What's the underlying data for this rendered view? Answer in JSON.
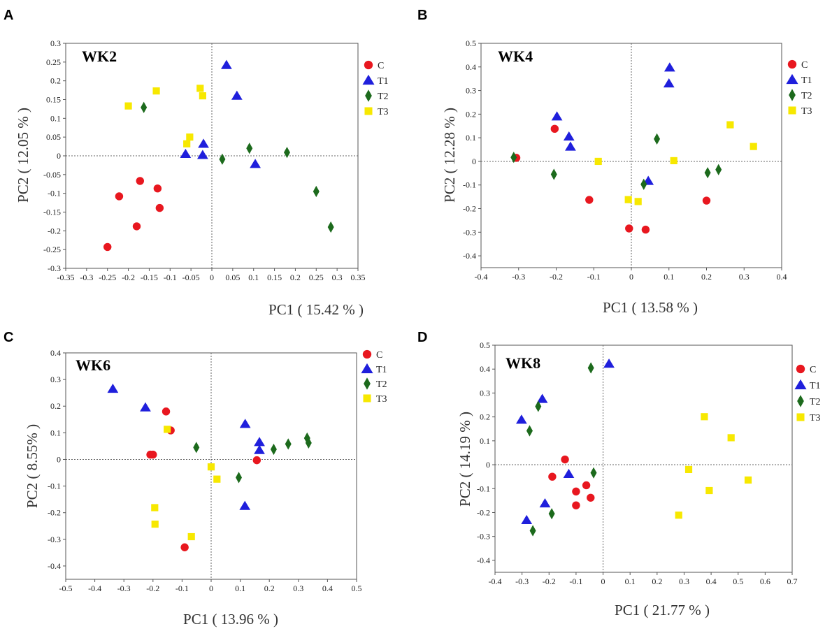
{
  "chart_data": [
    {
      "panel": "A",
      "type": "scatter",
      "title": "WK2",
      "xlabel": "PC1 ( 15.42 % )",
      "ylabel": "PC2 ( 12.05 % )",
      "xlim": [
        -0.35,
        0.35
      ],
      "ylim": [
        -0.3,
        0.3
      ],
      "xticks": [
        "-0.35",
        "-0.3",
        "-0.25",
        "-0.2",
        "-0.15",
        "-0.1",
        "-0.05",
        "0",
        "0.05",
        "0.1",
        "0.15",
        "0.2",
        "0.25",
        "0.3",
        "0.35"
      ],
      "xtick_values": [
        -0.35,
        -0.3,
        -0.25,
        -0.2,
        -0.15,
        -0.1,
        -0.05,
        0,
        0.05,
        0.1,
        0.15,
        0.2,
        0.25,
        0.3,
        0.35
      ],
      "yticks": [
        "-0.3",
        "-0.25",
        "-0.2",
        "-0.15",
        "-0.1",
        "-0.05",
        "0",
        "0.05",
        "0.1",
        "0.15",
        "0.2",
        "0.25",
        "0.3"
      ],
      "ytick_values": [
        -0.3,
        -0.25,
        -0.2,
        -0.15,
        -0.1,
        -0.05,
        0,
        0.05,
        0.1,
        0.15,
        0.2,
        0.25,
        0.3
      ],
      "series": [
        {
          "name": "C",
          "points": [
            [
              -0.25,
              -0.243
            ],
            [
              -0.222,
              -0.108
            ],
            [
              -0.18,
              -0.188
            ],
            [
              -0.172,
              -0.067
            ],
            [
              -0.13,
              -0.087
            ],
            [
              -0.125,
              -0.139
            ]
          ]
        },
        {
          "name": "T1",
          "points": [
            [
              0.035,
              0.242
            ],
            [
              0.06,
              0.16
            ],
            [
              -0.02,
              0.032
            ],
            [
              -0.063,
              0.005
            ],
            [
              -0.022,
              0.002
            ],
            [
              0.104,
              -0.022
            ]
          ]
        },
        {
          "name": "T2",
          "points": [
            [
              -0.163,
              0.129
            ],
            [
              0.09,
              0.02
            ],
            [
              0.18,
              0.009
            ],
            [
              0.025,
              -0.009
            ],
            [
              0.25,
              -0.095
            ],
            [
              0.285,
              -0.19
            ]
          ]
        },
        {
          "name": "T3",
          "points": [
            [
              -0.2,
              0.133
            ],
            [
              -0.133,
              0.173
            ],
            [
              -0.028,
              0.18
            ],
            [
              -0.022,
              0.16
            ],
            [
              -0.053,
              0.05
            ],
            [
              -0.06,
              0.032
            ]
          ]
        }
      ]
    },
    {
      "panel": "B",
      "type": "scatter",
      "title": "WK4",
      "xlabel": "PC1 ( 13.58 % )",
      "ylabel": "PC2 ( 12.28 % )",
      "xlim": [
        -0.4,
        0.4
      ],
      "ylim": [
        -0.45,
        0.5
      ],
      "xticks": [
        "-0.4",
        "-0.3",
        "-0.2",
        "-0.1",
        "0",
        "0.1",
        "0.2",
        "0.3",
        "0.4"
      ],
      "xtick_values": [
        -0.4,
        -0.3,
        -0.2,
        -0.1,
        0,
        0.1,
        0.2,
        0.3,
        0.4
      ],
      "yticks": [
        "-0.4",
        "-0.3",
        "-0.2",
        "-0.1",
        "0",
        "0.1",
        "0.2",
        "0.3",
        "0.4",
        "0.5"
      ],
      "ytick_values": [
        -0.4,
        -0.3,
        -0.2,
        -0.1,
        0,
        0.1,
        0.2,
        0.3,
        0.4,
        0.5
      ],
      "series": [
        {
          "name": "C",
          "points": [
            [
              -0.306,
              0.015
            ],
            [
              -0.204,
              0.138
            ],
            [
              -0.112,
              -0.163
            ],
            [
              -0.006,
              -0.284
            ],
            [
              0.038,
              -0.289
            ],
            [
              0.2,
              -0.166
            ]
          ]
        },
        {
          "name": "T1",
          "points": [
            [
              0.102,
              0.397
            ],
            [
              0.1,
              0.33
            ],
            [
              -0.198,
              0.19
            ],
            [
              -0.166,
              0.105
            ],
            [
              -0.162,
              0.062
            ],
            [
              0.045,
              -0.083
            ]
          ]
        },
        {
          "name": "T2",
          "points": [
            [
              -0.313,
              0.017
            ],
            [
              -0.206,
              -0.055
            ],
            [
              0.068,
              0.095
            ],
            [
              0.033,
              -0.097
            ],
            [
              0.203,
              -0.048
            ],
            [
              0.232,
              -0.035
            ]
          ]
        },
        {
          "name": "T3",
          "points": [
            [
              0.263,
              0.155
            ],
            [
              0.325,
              0.063
            ],
            [
              -0.088,
              0.0
            ],
            [
              0.113,
              0.003
            ],
            [
              -0.008,
              -0.162
            ],
            [
              0.018,
              -0.17
            ]
          ]
        }
      ]
    },
    {
      "panel": "C",
      "type": "scatter",
      "title": "WK6",
      "xlabel": "PC1 ( 13.96 % )",
      "ylabel": "PC2 ( 8.55% )",
      "xlim": [
        -0.5,
        0.5
      ],
      "ylim": [
        -0.45,
        0.4
      ],
      "xticks": [
        "-0.5",
        "-0.4",
        "-0.3",
        "-0.2",
        "-0.1",
        "0",
        "0.1",
        "0.2",
        "0.3",
        "0.4",
        "0.5"
      ],
      "xtick_values": [
        -0.5,
        -0.4,
        -0.3,
        -0.2,
        -0.1,
        0,
        0.1,
        0.2,
        0.3,
        0.4,
        0.5
      ],
      "yticks": [
        "-0.4",
        "-0.3",
        "-0.2",
        "-0.1",
        "0",
        "0.1",
        "0.2",
        "0.3",
        "0.4"
      ],
      "ytick_values": [
        -0.4,
        -0.3,
        -0.2,
        -0.1,
        0,
        0.1,
        0.2,
        0.3,
        0.4
      ],
      "series": [
        {
          "name": "C",
          "points": [
            [
              -0.155,
              0.18
            ],
            [
              -0.139,
              0.109
            ],
            [
              -0.209,
              0.018
            ],
            [
              -0.2,
              0.018
            ],
            [
              0.157,
              -0.003
            ],
            [
              -0.091,
              -0.33
            ]
          ]
        },
        {
          "name": "T1",
          "points": [
            [
              -0.338,
              0.265
            ],
            [
              -0.226,
              0.195
            ],
            [
              0.117,
              0.133
            ],
            [
              0.166,
              0.065
            ],
            [
              0.166,
              0.035
            ],
            [
              0.116,
              -0.175
            ]
          ]
        },
        {
          "name": "T2",
          "points": [
            [
              -0.051,
              0.045
            ],
            [
              0.215,
              0.038
            ],
            [
              0.265,
              0.058
            ],
            [
              0.33,
              0.08
            ],
            [
              0.335,
              0.062
            ],
            [
              0.095,
              -0.068
            ]
          ]
        },
        {
          "name": "T3",
          "points": [
            [
              -0.151,
              0.113
            ],
            [
              0.0,
              -0.028
            ],
            [
              0.02,
              -0.074
            ],
            [
              -0.194,
              -0.181
            ],
            [
              -0.193,
              -0.243
            ],
            [
              -0.068,
              -0.29
            ]
          ]
        }
      ]
    },
    {
      "panel": "D",
      "type": "scatter",
      "title": "WK8",
      "xlabel": "PC1 ( 21.77 % )",
      "ylabel": "PC2 ( 14.19 % )",
      "xlim": [
        -0.4,
        0.7
      ],
      "ylim": [
        -0.45,
        0.5
      ],
      "xticks": [
        "-0.4",
        "-0.3",
        "-0.2",
        "-0.1",
        "0",
        "0.1",
        "0.2",
        "0.3",
        "0.4",
        "0.5",
        "0.6",
        "0.7"
      ],
      "xtick_values": [
        -0.4,
        -0.3,
        -0.2,
        -0.1,
        0,
        0.1,
        0.2,
        0.3,
        0.4,
        0.5,
        0.6,
        0.7
      ],
      "yticks": [
        "-0.4",
        "-0.3",
        "-0.2",
        "-0.1",
        "0",
        "0.1",
        "0.2",
        "0.3",
        "0.4",
        "0.5"
      ],
      "ytick_values": [
        -0.4,
        -0.3,
        -0.2,
        -0.1,
        0,
        0.1,
        0.2,
        0.3,
        0.4,
        0.5
      ],
      "series": [
        {
          "name": "C",
          "points": [
            [
              -0.141,
              0.022
            ],
            [
              -0.188,
              -0.05
            ],
            [
              -0.062,
              -0.086
            ],
            [
              -0.1,
              -0.112
            ],
            [
              -0.046,
              -0.138
            ],
            [
              -0.1,
              -0.17
            ]
          ]
        },
        {
          "name": "T1",
          "points": [
            [
              0.022,
              0.422
            ],
            [
              -0.225,
              0.275
            ],
            [
              -0.302,
              0.188
            ],
            [
              -0.127,
              -0.039
            ],
            [
              -0.215,
              -0.162
            ],
            [
              -0.283,
              -0.232
            ]
          ]
        },
        {
          "name": "T2",
          "points": [
            [
              -0.045,
              0.405
            ],
            [
              -0.24,
              0.244
            ],
            [
              -0.272,
              0.142
            ],
            [
              -0.035,
              -0.034
            ],
            [
              -0.19,
              -0.205
            ],
            [
              -0.26,
              -0.276
            ]
          ]
        },
        {
          "name": "T3",
          "points": [
            [
              0.375,
              0.201
            ],
            [
              0.474,
              0.113
            ],
            [
              0.317,
              -0.02
            ],
            [
              0.393,
              -0.108
            ],
            [
              0.537,
              -0.064
            ],
            [
              0.28,
              -0.211
            ]
          ]
        }
      ]
    }
  ],
  "legend": [
    {
      "name": "C",
      "marker": "circle",
      "color": "#e8171f"
    },
    {
      "name": "T1",
      "marker": "triangle",
      "color": "#1f1fdc"
    },
    {
      "name": "T2",
      "marker": "diamond",
      "color": "#1c6a1c"
    },
    {
      "name": "T3",
      "marker": "square",
      "color": "#f7e800"
    }
  ]
}
